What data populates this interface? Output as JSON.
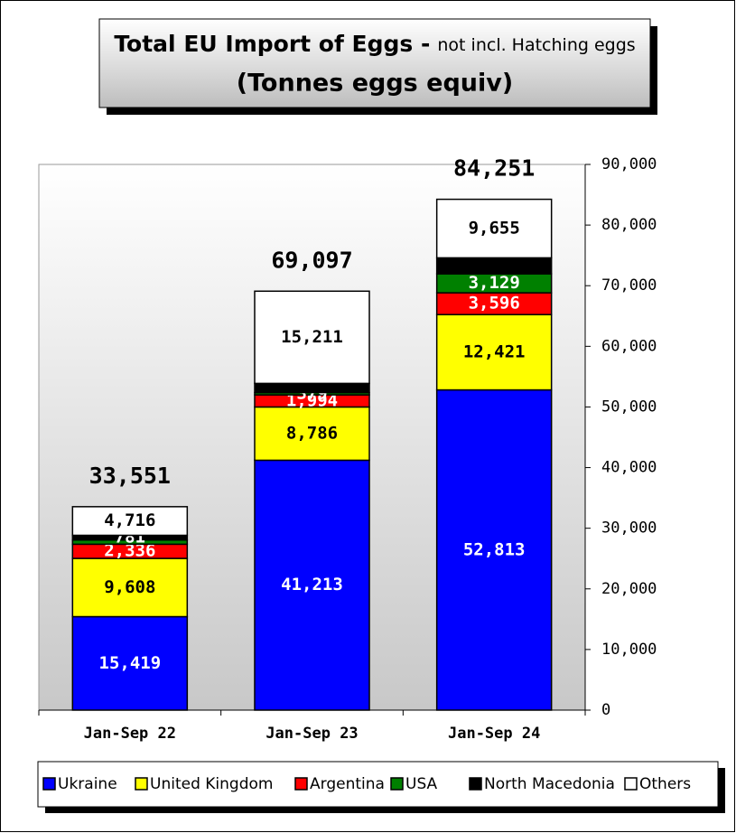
{
  "chart_data": {
    "type": "stacked_bar",
    "title_bold": "Total EU Import of Eggs -",
    "title_note": "not incl. Hatching eggs",
    "subtitle": "(Tonnes eggs equiv)",
    "categories": [
      "Jan-Sep 22",
      "Jan-Sep 23",
      "Jan-Sep 24"
    ],
    "series": [
      {
        "name": "Ukraine",
        "color": "#0000ff",
        "values": [
          15419,
          41213,
          52813
        ],
        "value_labels": [
          "15,419",
          "41,213",
          "52,813"
        ]
      },
      {
        "name": "United Kingdom",
        "color": "#ffff00",
        "values": [
          9608,
          8786,
          12421
        ],
        "value_labels": [
          "9,608",
          "8,786",
          "12,421"
        ]
      },
      {
        "name": "Argentina",
        "color": "#ff0000",
        "values": [
          2336,
          1994,
          3596
        ],
        "value_labels": [
          "2,336",
          "1,994",
          "3,596"
        ]
      },
      {
        "name": "USA",
        "color": "#008000",
        "values": [
          691,
          379,
          3129
        ],
        "value_labels": [
          null,
          "379",
          "3,129"
        ]
      },
      {
        "name": "North Macedonia",
        "color": "#000000",
        "values": [
          781,
          1514,
          2637
        ],
        "value_labels": [
          "781",
          null,
          null
        ]
      },
      {
        "name": "Others",
        "color": "#ffffff",
        "values": [
          4716,
          15211,
          9655
        ],
        "value_labels": [
          "4,716",
          "15,211",
          "9,655"
        ]
      }
    ],
    "totals": [
      33551,
      69097,
      84251
    ],
    "total_labels": [
      "33,551",
      "69,097",
      "84,251"
    ],
    "ylim": [
      0,
      90000
    ],
    "yticks": [
      0,
      {
        "value": 10000,
        "label": "10,000"
      },
      {
        "value": 20000,
        "label": "20,000"
      },
      {
        "value": 30000,
        "label": "30,000"
      },
      {
        "value": 40000,
        "label": "40,000"
      },
      {
        "value": 50000,
        "label": "50,000"
      },
      {
        "value": 60000,
        "label": "60,000"
      },
      {
        "value": 70000,
        "label": "70,000"
      },
      {
        "value": 80000,
        "label": "80,000"
      },
      {
        "value": 90000,
        "label": "90,000"
      }
    ],
    "legend": "bottom"
  }
}
